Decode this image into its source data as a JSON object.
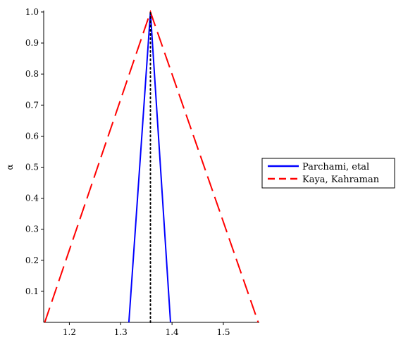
{
  "chart_data": {
    "type": "line",
    "title": "",
    "xlabel": "",
    "ylabel": "α",
    "xlim": [
      1.15,
      1.57
    ],
    "ylim": [
      0,
      1.0
    ],
    "xticks": [
      1.2,
      1.3,
      1.4,
      1.5
    ],
    "yticks": [
      0.1,
      0.2,
      0.3,
      0.4,
      0.5,
      0.6,
      0.7,
      0.8,
      0.9,
      1.0
    ],
    "legend_position": "right",
    "grid": false,
    "series": [
      {
        "name": "Parchami, etal",
        "color": "#0000ff",
        "style": "solid",
        "x": [
          1.316,
          1.358,
          1.397
        ],
        "y": [
          0,
          1.0,
          0
        ]
      },
      {
        "name": "Kaya, Kahraman",
        "color": "#ff0000",
        "style": "dashed",
        "x": [
          1.152,
          1.358,
          1.568
        ],
        "y": [
          0,
          1.0,
          0
        ]
      },
      {
        "name": "",
        "color": "#000000",
        "style": "dotted",
        "x": [
          1.358,
          1.358
        ],
        "y": [
          0,
          1.0
        ]
      }
    ]
  }
}
